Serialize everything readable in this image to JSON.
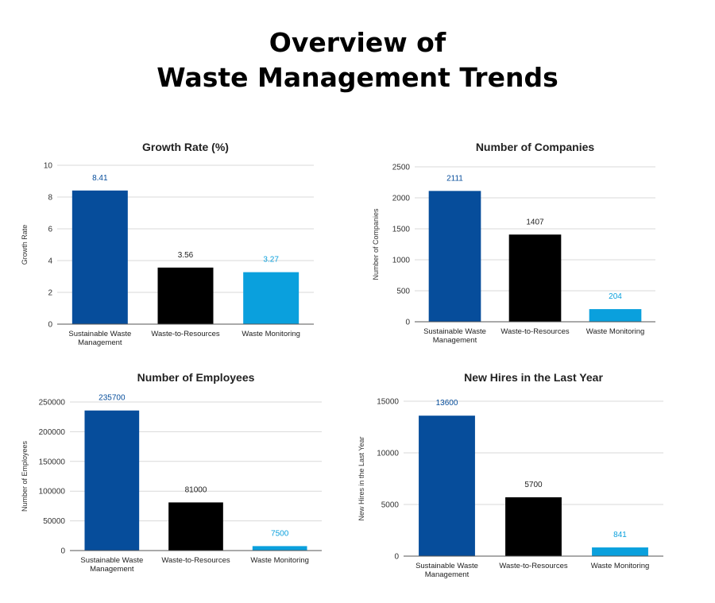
{
  "page": {
    "title_lines": [
      "Overview of",
      "Waste Management Trends"
    ]
  },
  "colors": {
    "Sustainable Waste Management": "#064d9b",
    "Waste-to-Resources": "#000000",
    "Waste Monitoring": "#0aa0dd",
    "grid": "#d9d9d9",
    "axis": "#555555"
  },
  "chart_data": [
    {
      "type": "bar",
      "title": "Growth Rate (%)",
      "ylabel": "Growth Rate",
      "xlabel": "",
      "categories": [
        "Sustainable Waste Management",
        "Waste-to-Resources",
        "Waste Monitoring"
      ],
      "category_lines": [
        [
          "Sustainable Waste",
          "Management"
        ],
        [
          "Waste-to-Resources"
        ],
        [
          "Waste Monitoring"
        ]
      ],
      "values": [
        8.41,
        3.56,
        3.27
      ],
      "value_labels": [
        "8.41",
        "3.56",
        "3.27"
      ],
      "ylim": [
        0,
        10
      ],
      "yticks": [
        0,
        2,
        4,
        6,
        8,
        10
      ],
      "grid": true,
      "legend": "none"
    },
    {
      "type": "bar",
      "title": "Number of Companies",
      "ylabel": "Number of Companies",
      "xlabel": "",
      "categories": [
        "Sustainable Waste Management",
        "Waste-to-Resources",
        "Waste Monitoring"
      ],
      "category_lines": [
        [
          "Sustainable Waste",
          "Management"
        ],
        [
          "Waste-to-Resources"
        ],
        [
          "Waste Monitoring"
        ]
      ],
      "values": [
        2111,
        1407,
        204
      ],
      "value_labels": [
        "2111",
        "1407",
        "204"
      ],
      "ylim": [
        0,
        2500
      ],
      "yticks": [
        0,
        500,
        1000,
        1500,
        2000,
        2500
      ],
      "grid": true,
      "legend": "none"
    },
    {
      "type": "bar",
      "title": "Number of Employees",
      "ylabel": "Number of Employees",
      "xlabel": "",
      "categories": [
        "Sustainable Waste Management",
        "Waste-to-Resources",
        "Waste Monitoring"
      ],
      "category_lines": [
        [
          "Sustainable Waste",
          "Management"
        ],
        [
          "Waste-to-Resources"
        ],
        [
          "Waste Monitoring"
        ]
      ],
      "values": [
        235700,
        81000,
        7500
      ],
      "value_labels": [
        "235700",
        "81000",
        "7500"
      ],
      "ylim": [
        0,
        250000
      ],
      "yticks": [
        0,
        50000,
        100000,
        150000,
        200000,
        250000
      ],
      "grid": true,
      "legend": "none"
    },
    {
      "type": "bar",
      "title": "New Hires in the Last Year",
      "ylabel": "New Hires in the Last Year",
      "xlabel": "",
      "categories": [
        "Sustainable Waste Management",
        "Waste-to-Resources",
        "Waste Monitoring"
      ],
      "category_lines": [
        [
          "Sustainable Waste",
          "Management"
        ],
        [
          "Waste-to-Resources"
        ],
        [
          "Waste Monitoring"
        ]
      ],
      "values": [
        13600,
        5700,
        841
      ],
      "value_labels": [
        "13600",
        "5700",
        "841"
      ],
      "ylim": [
        0,
        15000
      ],
      "yticks": [
        0,
        5000,
        10000,
        15000
      ],
      "grid": true,
      "legend": "none"
    }
  ]
}
